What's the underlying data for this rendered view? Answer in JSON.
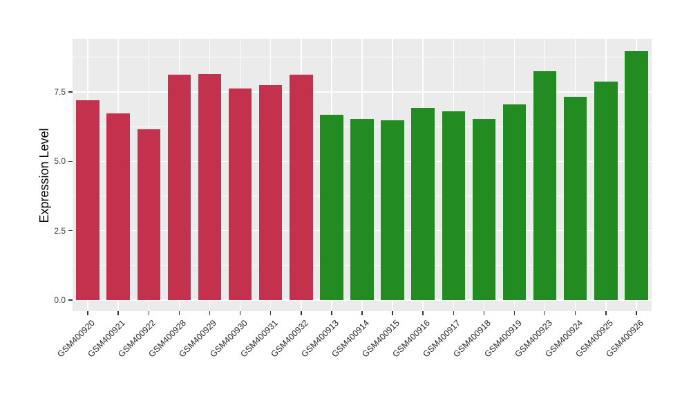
{
  "chart_data": {
    "type": "bar",
    "title": "",
    "xlabel": "",
    "ylabel": "Expression Level",
    "categories": [
      "GSM400920",
      "GSM400921",
      "GSM400922",
      "GSM400928",
      "GSM400929",
      "GSM400930",
      "GSM400931",
      "GSM400932",
      "GSM400913",
      "GSM400914",
      "GSM400915",
      "GSM400916",
      "GSM400917",
      "GSM400918",
      "GSM400919",
      "GSM400923",
      "GSM400924",
      "GSM400925",
      "GSM400926"
    ],
    "values": [
      7.2,
      6.74,
      6.15,
      8.13,
      8.15,
      7.62,
      7.76,
      8.12,
      6.68,
      6.52,
      6.49,
      6.93,
      6.81,
      6.53,
      7.05,
      8.24,
      7.33,
      7.87,
      8.97
    ],
    "groups": [
      {
        "name": "group-red",
        "color": "#C3314C",
        "start_index": 0,
        "count": 8
      },
      {
        "name": "group-green",
        "color": "#228B22",
        "start_index": 8,
        "count": 11
      }
    ],
    "ylim": [
      -0.4,
      9.42
    ],
    "yticks_major": [
      0,
      2.5,
      5,
      7.5
    ],
    "ytick_labels": [
      "0.0",
      "2.5",
      "5.0",
      "7.5"
    ],
    "yticks_minor": [
      1.25,
      3.75,
      6.25,
      8.75
    ],
    "panel_bg": "#EBEBEB",
    "grid_color": "#FFFFFF",
    "tick_mark_color": "#333333",
    "axis_text_color": "#404040",
    "axis_title_color": "#000000",
    "x_label_rotation_deg": 45,
    "legend_position": "none",
    "grid": "major and minor horizontal white lines, vertical white line at each category"
  }
}
